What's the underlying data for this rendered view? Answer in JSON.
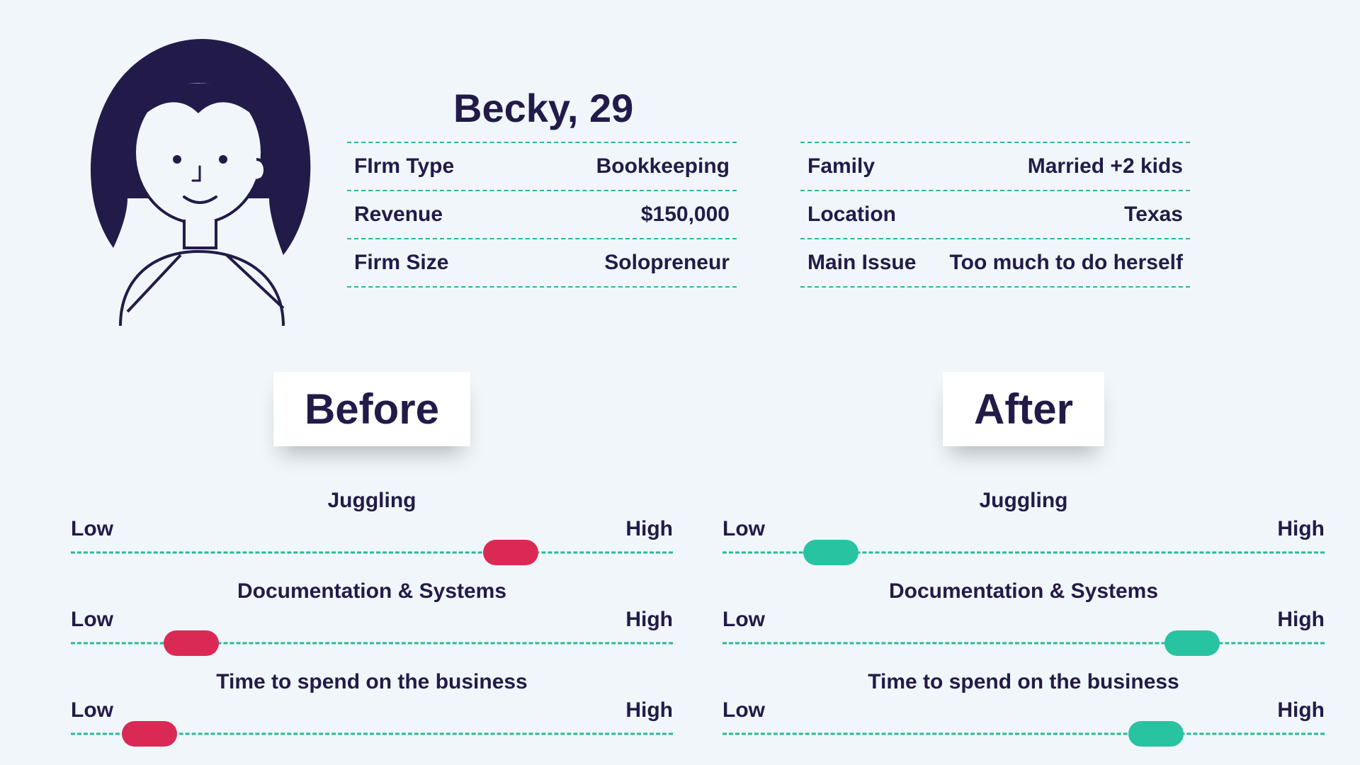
{
  "colors": {
    "background": "#f0f6fa",
    "text": "#221b49",
    "dash": "#2ab89a",
    "pill_before": "#db2955",
    "pill_after": "#28c3a0",
    "card_bg": "#ffffff"
  },
  "persona": {
    "title": "Becky, 29",
    "left_attrs": [
      {
        "label": "FIrm Type",
        "value": "Bookkeeping"
      },
      {
        "label": "Revenue",
        "value": "$150,000"
      },
      {
        "label": "Firm Size",
        "value": "Solopreneur"
      }
    ],
    "right_attrs": [
      {
        "label": "Family",
        "value": "Married +2 kids"
      },
      {
        "label": "Location",
        "value": "Texas"
      },
      {
        "label": "Main Issue",
        "value": "Too much to do herself"
      }
    ]
  },
  "before": {
    "title": "Before",
    "metrics": [
      {
        "name": "Juggling",
        "low": "Low",
        "high": "High",
        "position_pct": 73
      },
      {
        "name": "Documentation & Systems",
        "low": "Low",
        "high": "High",
        "position_pct": 20
      },
      {
        "name": "Time to spend on the business",
        "low": "Low",
        "high": "High",
        "position_pct": 13
      }
    ]
  },
  "after": {
    "title": "After",
    "metrics": [
      {
        "name": "Juggling",
        "low": "Low",
        "high": "High",
        "position_pct": 18
      },
      {
        "name": "Documentation & Systems",
        "low": "Low",
        "high": "High",
        "position_pct": 78
      },
      {
        "name": "Time to spend on the business",
        "low": "Low",
        "high": "High",
        "position_pct": 72
      }
    ]
  },
  "style": {
    "title_fontsize": 56,
    "attr_fontsize": 30,
    "card_title_fontsize": 60,
    "metric_fontsize": 30,
    "pill_width": 78,
    "pill_height": 36
  }
}
